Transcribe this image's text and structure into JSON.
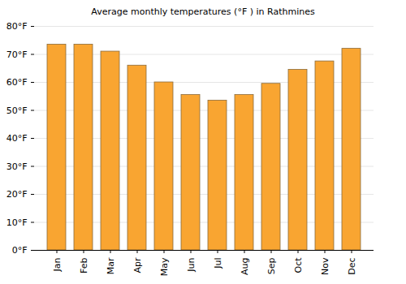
{
  "chart_data": {
    "type": "bar",
    "title": "Average monthly temperatures (°F ) in Rathmines",
    "categories": [
      "Jan",
      "Feb",
      "Mar",
      "Apr",
      "May",
      "Jun",
      "Jul",
      "Aug",
      "Sep",
      "Oct",
      "Nov",
      "Dec"
    ],
    "values": [
      73.5,
      73.5,
      71,
      66,
      60,
      55.5,
      53.5,
      55.5,
      59.5,
      64.5,
      67.5,
      72
    ],
    "color": "#f9a531",
    "ylim": [
      0,
      80
    ],
    "yticks": [
      {
        "value": 0,
        "label": "0°F"
      },
      {
        "value": 10,
        "label": "10°F"
      },
      {
        "value": 20,
        "label": "20°F"
      },
      {
        "value": 30,
        "label": "30°F"
      },
      {
        "value": 40,
        "label": "40°F"
      },
      {
        "value": 50,
        "label": "50°F"
      },
      {
        "value": 60,
        "label": "60°F"
      },
      {
        "value": 70,
        "label": "70°F"
      },
      {
        "value": 80,
        "label": "80°F"
      }
    ],
    "grid": true
  }
}
